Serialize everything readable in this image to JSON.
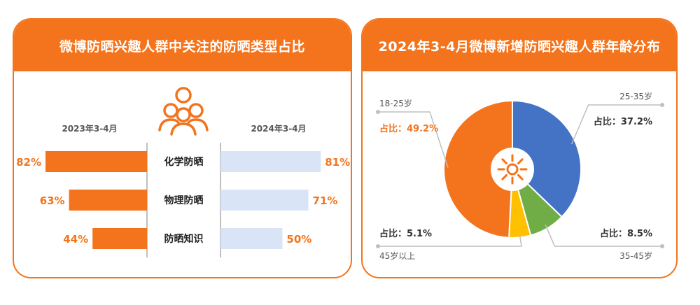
{
  "left_title": "微博防晒兴趣人群中关注的防晒类型占比",
  "right_title": "2024年3-4月微博新增防晒兴趣人群年龄分布",
  "colors": {
    "orange": "#f3741c",
    "light_blue": "#d9e5f6",
    "blue": "#4472c4",
    "green": "#70ad47",
    "yellow": "#ffc000",
    "gray_line": "#bfbfbf",
    "label_gray": "#555555"
  },
  "icons": {
    "left": "people-group-icon",
    "right": "sun-icon"
  },
  "chart_data": [
    {
      "type": "bar",
      "title": "微博防晒兴趣人群中关注的防晒类型占比",
      "categories": [
        "化学防晒",
        "物理防晒",
        "防晒知识"
      ],
      "series": [
        {
          "name": "2023年3-4月",
          "values": [
            82,
            63,
            44
          ],
          "labels": [
            "82%",
            "63%",
            "44%"
          ]
        },
        {
          "name": "2024年3-4月",
          "values": [
            81,
            71,
            50
          ],
          "labels": [
            "81%",
            "71%",
            "50%"
          ]
        }
      ],
      "unit": "%"
    },
    {
      "type": "pie",
      "title": "2024年3-4月微博新增防晒兴趣人群年龄分布",
      "slices": [
        {
          "name": "25-35岁",
          "value": 37.2,
          "label": "占比：37.2%"
        },
        {
          "name": "35-45岁",
          "value": 8.5,
          "label": "占比：8.5%"
        },
        {
          "name": "45岁以上",
          "value": 5.1,
          "label": "占比：5.1%"
        },
        {
          "name": "18-25岁",
          "value": 49.2,
          "label": "占比：49.2%"
        }
      ]
    }
  ]
}
